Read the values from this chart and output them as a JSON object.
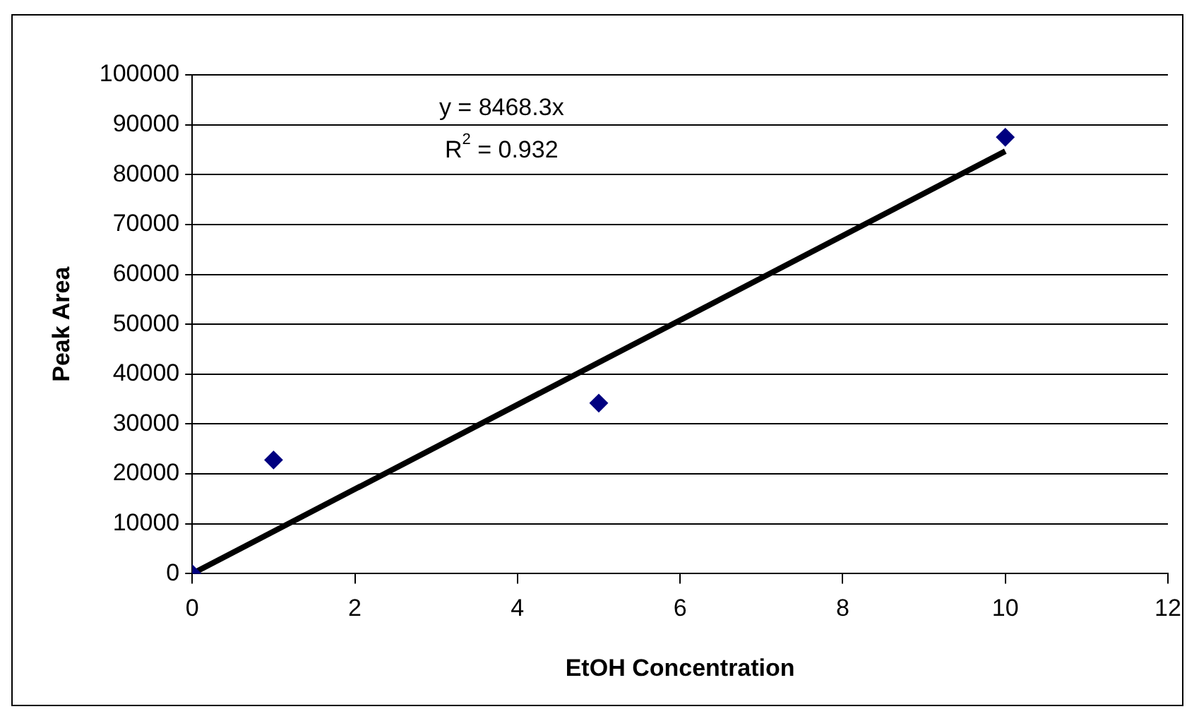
{
  "chart_data": {
    "type": "scatter",
    "xlabel": "EtOH Concentration",
    "ylabel": "Peak Area",
    "annotations": [
      "y = 8468.3x",
      "R$^{2}$ = 0.932"
    ],
    "xlim": [
      0,
      12
    ],
    "xticks": [
      0,
      2,
      4,
      6,
      8,
      10,
      12
    ],
    "ylim": [
      0,
      100000
    ],
    "yticks": [
      0,
      10000,
      20000,
      30000,
      40000,
      50000,
      60000,
      70000,
      80000,
      90000,
      100000
    ],
    "grid": "y",
    "legend": false,
    "series": [
      {
        "type": "scatter",
        "color": "#000080",
        "marker": "diamond",
        "x": [
          0,
          1,
          5,
          10
        ],
        "values": [
          0,
          22800,
          34200,
          87500
        ]
      },
      {
        "type": "line",
        "color": "#000000",
        "marker": "none",
        "line_style": "solid",
        "x": [
          0,
          10
        ],
        "values": [
          0,
          84700
        ]
      }
    ]
  }
}
